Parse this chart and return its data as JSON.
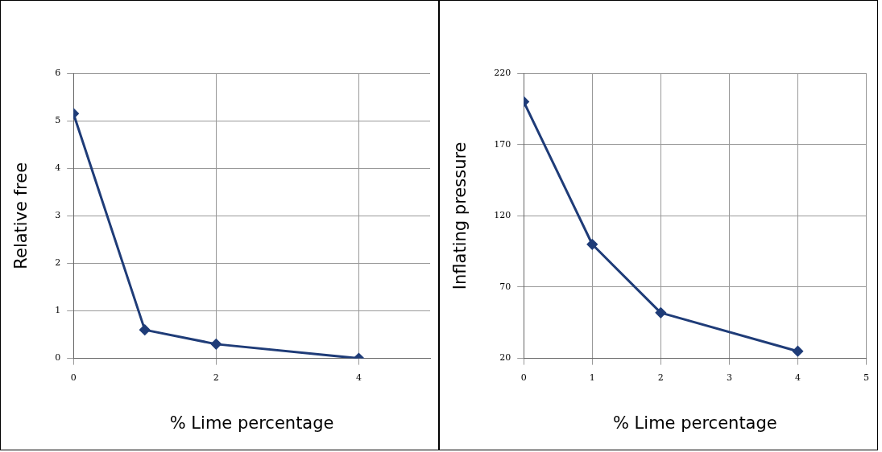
{
  "chart_data": [
    {
      "type": "line",
      "ylabel": "Relative free",
      "xlabel": "% Lime percentage",
      "x": [
        0,
        1,
        2,
        4
      ],
      "xlim": [
        0,
        5
      ],
      "xticks": [
        0,
        2,
        4
      ],
      "ylim": [
        0,
        6
      ],
      "yticks": [
        0,
        1,
        2,
        3,
        4,
        5,
        6
      ],
      "grid": true,
      "legend": false,
      "marker": "diamond",
      "series": [
        {
          "color": "#1f3c78",
          "values": [
            5.15,
            0.6,
            0.3,
            0
          ]
        }
      ]
    },
    {
      "type": "line",
      "ylabel": "Inflating pressure",
      "xlabel": "% Lime percentage",
      "x": [
        0,
        1,
        2,
        4
      ],
      "xlim": [
        0,
        5
      ],
      "xticks": [
        0,
        1,
        2,
        3,
        4,
        5
      ],
      "ylim": [
        20,
        220
      ],
      "yticks": [
        20,
        70,
        120,
        170,
        220
      ],
      "grid": true,
      "legend": false,
      "marker": "diamond",
      "series": [
        {
          "color": "#1f3c78",
          "values": [
            200,
            100,
            52,
            25
          ]
        }
      ]
    }
  ]
}
